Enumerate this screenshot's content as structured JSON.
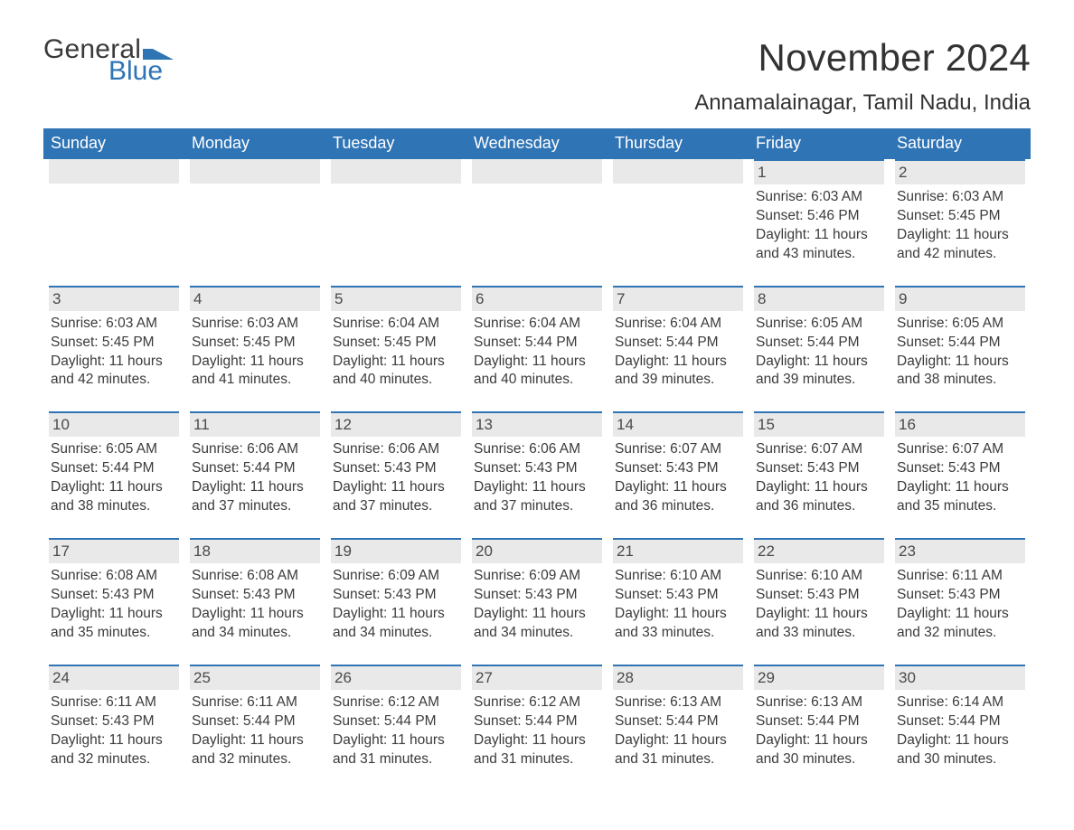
{
  "logo": {
    "general": "General",
    "blue": "Blue"
  },
  "title": "November 2024",
  "location": "Annamalainagar, Tamil Nadu, India",
  "colors": {
    "brand_blue": "#2f74b5",
    "header_bg": "#2f74b5",
    "header_text": "#ffffff",
    "daynum_bg": "#e9e9e9",
    "daynum_border": "#2f74b5",
    "text": "#333333",
    "body_bg": "#ffffff"
  },
  "weekdays": [
    "Sunday",
    "Monday",
    "Tuesday",
    "Wednesday",
    "Thursday",
    "Friday",
    "Saturday"
  ],
  "weeks": [
    [
      null,
      null,
      null,
      null,
      null,
      {
        "n": "1",
        "sr": "6:03 AM",
        "ss": "5:46 PM",
        "dl": "11 hours and 43 minutes."
      },
      {
        "n": "2",
        "sr": "6:03 AM",
        "ss": "5:45 PM",
        "dl": "11 hours and 42 minutes."
      }
    ],
    [
      {
        "n": "3",
        "sr": "6:03 AM",
        "ss": "5:45 PM",
        "dl": "11 hours and 42 minutes."
      },
      {
        "n": "4",
        "sr": "6:03 AM",
        "ss": "5:45 PM",
        "dl": "11 hours and 41 minutes."
      },
      {
        "n": "5",
        "sr": "6:04 AM",
        "ss": "5:45 PM",
        "dl": "11 hours and 40 minutes."
      },
      {
        "n": "6",
        "sr": "6:04 AM",
        "ss": "5:44 PM",
        "dl": "11 hours and 40 minutes."
      },
      {
        "n": "7",
        "sr": "6:04 AM",
        "ss": "5:44 PM",
        "dl": "11 hours and 39 minutes."
      },
      {
        "n": "8",
        "sr": "6:05 AM",
        "ss": "5:44 PM",
        "dl": "11 hours and 39 minutes."
      },
      {
        "n": "9",
        "sr": "6:05 AM",
        "ss": "5:44 PM",
        "dl": "11 hours and 38 minutes."
      }
    ],
    [
      {
        "n": "10",
        "sr": "6:05 AM",
        "ss": "5:44 PM",
        "dl": "11 hours and 38 minutes."
      },
      {
        "n": "11",
        "sr": "6:06 AM",
        "ss": "5:44 PM",
        "dl": "11 hours and 37 minutes."
      },
      {
        "n": "12",
        "sr": "6:06 AM",
        "ss": "5:43 PM",
        "dl": "11 hours and 37 minutes."
      },
      {
        "n": "13",
        "sr": "6:06 AM",
        "ss": "5:43 PM",
        "dl": "11 hours and 37 minutes."
      },
      {
        "n": "14",
        "sr": "6:07 AM",
        "ss": "5:43 PM",
        "dl": "11 hours and 36 minutes."
      },
      {
        "n": "15",
        "sr": "6:07 AM",
        "ss": "5:43 PM",
        "dl": "11 hours and 36 minutes."
      },
      {
        "n": "16",
        "sr": "6:07 AM",
        "ss": "5:43 PM",
        "dl": "11 hours and 35 minutes."
      }
    ],
    [
      {
        "n": "17",
        "sr": "6:08 AM",
        "ss": "5:43 PM",
        "dl": "11 hours and 35 minutes."
      },
      {
        "n": "18",
        "sr": "6:08 AM",
        "ss": "5:43 PM",
        "dl": "11 hours and 34 minutes."
      },
      {
        "n": "19",
        "sr": "6:09 AM",
        "ss": "5:43 PM",
        "dl": "11 hours and 34 minutes."
      },
      {
        "n": "20",
        "sr": "6:09 AM",
        "ss": "5:43 PM",
        "dl": "11 hours and 34 minutes."
      },
      {
        "n": "21",
        "sr": "6:10 AM",
        "ss": "5:43 PM",
        "dl": "11 hours and 33 minutes."
      },
      {
        "n": "22",
        "sr": "6:10 AM",
        "ss": "5:43 PM",
        "dl": "11 hours and 33 minutes."
      },
      {
        "n": "23",
        "sr": "6:11 AM",
        "ss": "5:43 PM",
        "dl": "11 hours and 32 minutes."
      }
    ],
    [
      {
        "n": "24",
        "sr": "6:11 AM",
        "ss": "5:43 PM",
        "dl": "11 hours and 32 minutes."
      },
      {
        "n": "25",
        "sr": "6:11 AM",
        "ss": "5:44 PM",
        "dl": "11 hours and 32 minutes."
      },
      {
        "n": "26",
        "sr": "6:12 AM",
        "ss": "5:44 PM",
        "dl": "11 hours and 31 minutes."
      },
      {
        "n": "27",
        "sr": "6:12 AM",
        "ss": "5:44 PM",
        "dl": "11 hours and 31 minutes."
      },
      {
        "n": "28",
        "sr": "6:13 AM",
        "ss": "5:44 PM",
        "dl": "11 hours and 31 minutes."
      },
      {
        "n": "29",
        "sr": "6:13 AM",
        "ss": "5:44 PM",
        "dl": "11 hours and 30 minutes."
      },
      {
        "n": "30",
        "sr": "6:14 AM",
        "ss": "5:44 PM",
        "dl": "11 hours and 30 minutes."
      }
    ]
  ],
  "labels": {
    "sunrise": "Sunrise: ",
    "sunset": "Sunset: ",
    "daylight": "Daylight: "
  },
  "typography": {
    "title_fontsize": 42,
    "location_fontsize": 24,
    "weekday_fontsize": 18,
    "daynum_fontsize": 17,
    "info_fontsize": 15.5
  }
}
